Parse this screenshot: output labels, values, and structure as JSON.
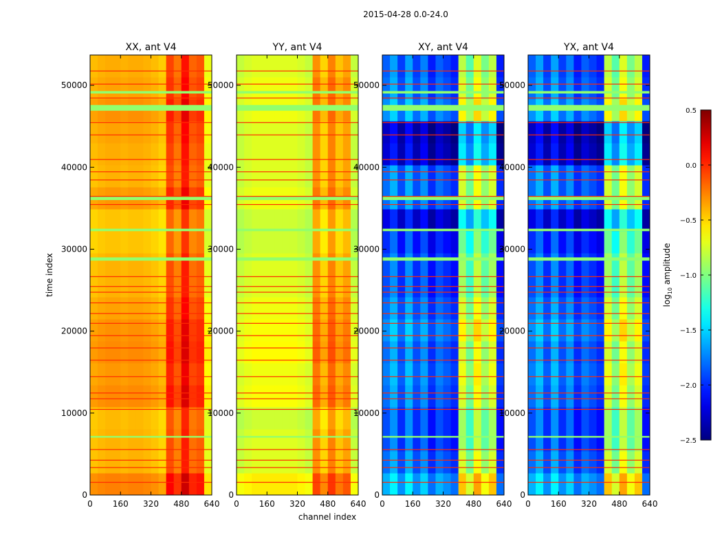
{
  "chart_data": {
    "type": "heatmap",
    "suptitle": "2015-04-28 0.0-24.0",
    "xlabel": "channel index",
    "ylabel": "time index",
    "xlim": [
      0,
      640
    ],
    "ylim": [
      0,
      53700
    ],
    "xticks": [
      0,
      160,
      320,
      480,
      640
    ],
    "yticks": [
      0,
      10000,
      20000,
      30000,
      40000,
      50000
    ],
    "channel_bin_width": 40,
    "time_bin_width": 2685,
    "colorbar": {
      "label_main": "log",
      "label_sub": "10",
      "label_rest": " amplitude",
      "range": [
        -2.5,
        0.5
      ],
      "ticks": [
        "0.5",
        "0.0",
        "−0.5",
        "−1.0",
        "−1.5",
        "−2.0",
        "−2.5"
      ],
      "tick_values": [
        0.5,
        0.0,
        -0.5,
        -1.0,
        -1.5,
        -2.0,
        -2.5
      ],
      "colormap": "jet"
    },
    "panels": [
      {
        "title": "XX, ant V4",
        "channel_profile": [
          -0.45,
          -0.42,
          -0.4,
          -0.4,
          -0.42,
          -0.4,
          -0.4,
          -0.42,
          -0.45,
          -0.5,
          -0.1,
          -0.25,
          0.05,
          -0.2,
          -0.15,
          -0.7
        ],
        "time_offsets": [
          0.15,
          0,
          0,
          -0.02,
          0.12,
          0.08,
          0.12,
          0.1,
          0.05,
          0,
          0,
          -0.05,
          -0.05,
          0.08,
          0,
          0.02,
          0.05,
          0.1,
          0.05,
          0.02
        ],
        "flag_value": 0.0,
        "band_value": -0.95
      },
      {
        "title": "YY, ant V4",
        "channel_profile": [
          -0.8,
          -0.75,
          -0.72,
          -0.72,
          -0.72,
          -0.72,
          -0.72,
          -0.72,
          -0.75,
          -0.8,
          -0.3,
          -0.5,
          -0.25,
          -0.45,
          -0.35,
          -0.8
        ],
        "time_offsets": [
          0.15,
          0,
          0,
          -0.05,
          0.08,
          0.05,
          0.1,
          0.08,
          0.05,
          0,
          0,
          -0.05,
          -0.05,
          0.05,
          0,
          0,
          0,
          0.05,
          0.05,
          0
        ],
        "flag_value": 0.0,
        "band_value": -0.95
      },
      {
        "title": "XY, ant V4",
        "channel_profile": [
          -1.9,
          -1.7,
          -2.0,
          -1.7,
          -2.0,
          -1.8,
          -2.1,
          -1.9,
          -2.0,
          -2.1,
          -0.9,
          -1.2,
          -0.8,
          -1.1,
          -0.9,
          -2.1
        ],
        "time_offsets": [
          0.3,
          0.1,
          0,
          0,
          0.1,
          0.15,
          0.1,
          0.2,
          0.1,
          0,
          0,
          -0.1,
          -0.3,
          0.1,
          0.1,
          -0.35,
          -0.4,
          0.2,
          0.1,
          0.05
        ],
        "flag_value": 0.0,
        "band_value": -0.95
      },
      {
        "title": "YX, ant V4",
        "channel_profile": [
          -1.9,
          -1.7,
          -2.0,
          -1.7,
          -2.0,
          -1.8,
          -2.1,
          -1.9,
          -2.0,
          -2.1,
          -0.9,
          -1.2,
          -0.8,
          -1.1,
          -0.9,
          -2.1
        ],
        "time_offsets": [
          0.3,
          0.1,
          0,
          0,
          0.1,
          0.15,
          0.1,
          0.2,
          0.1,
          0,
          0,
          -0.1,
          -0.3,
          0.1,
          0.1,
          -0.35,
          -0.4,
          0.2,
          0.1,
          0.05
        ],
        "flag_value": 0.0,
        "band_value": -0.95
      }
    ],
    "flag_lines": [
      1600,
      3400,
      4300,
      5600,
      10500,
      11800,
      12500,
      14500,
      16500,
      18000,
      19500,
      21000,
      22200,
      23500,
      24800,
      25500,
      26700,
      35500,
      36500,
      38500,
      39500,
      41000,
      44000,
      45500,
      48500,
      50200,
      51800
    ],
    "bad_bands": [
      [
        7000,
        7200
      ],
      [
        28600,
        29000
      ],
      [
        32200,
        32500
      ],
      [
        36000,
        36400
      ],
      [
        46900,
        47600
      ],
      [
        49000,
        49300
      ]
    ]
  }
}
